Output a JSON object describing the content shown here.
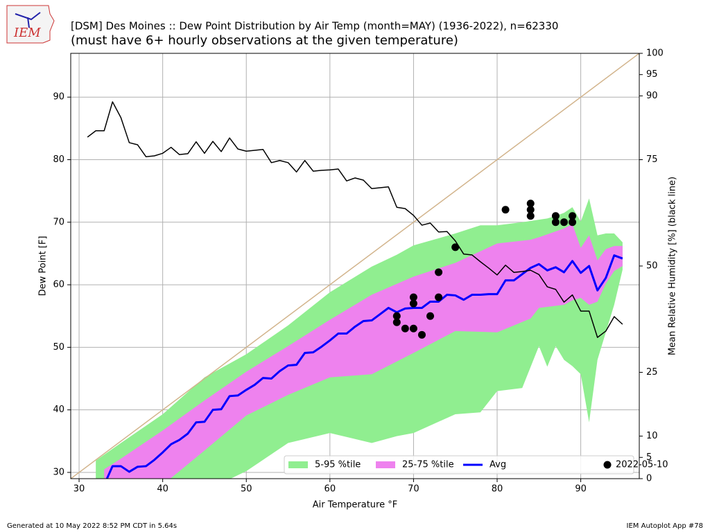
{
  "logo_text": "IEM",
  "footer_left": "Generated at 10 May 2022 8:52 PM CDT in 5.64s",
  "footer_right": "IEM Autoplot App #78",
  "chart_data": {
    "type": "line",
    "title": "[DSM] Des Moines :: Dew Point Distribution by Air Temp (month=MAY) (1936-2022), n=62330",
    "subtitle": "(must have 6+ hourly observations at the given temperature)",
    "xlabel": "Air Temperature °F",
    "ylabel": "Dew Point [F]",
    "y2label": "Mean Relative Humidity [%] (black line)",
    "xlim": [
      29,
      97
    ],
    "xticks": [
      30,
      40,
      50,
      60,
      70,
      80,
      90
    ],
    "ylim": [
      29,
      97
    ],
    "yticks": [
      30,
      40,
      50,
      60,
      70,
      80,
      90
    ],
    "y2lim": [
      0,
      100
    ],
    "y2ticks": [
      0,
      5,
      10,
      25,
      50,
      75,
      90,
      95,
      100
    ],
    "grid": true,
    "legend": "lower right",
    "series": [
      {
        "name": "5-95 %tile",
        "type": "band",
        "color": "#90ee90",
        "x": [
          32,
          35,
          40,
          45,
          50,
          55,
          60,
          65,
          68,
          70,
          75,
          78,
          80,
          83,
          85,
          86,
          87,
          88,
          89,
          90,
          91,
          92,
          93,
          94,
          95
        ],
        "upper": [
          31.9,
          34.7,
          39.3,
          45.2,
          48.9,
          53.5,
          58.8,
          62.9,
          64.8,
          66.3,
          68.2,
          69.5,
          69.5,
          70,
          70.4,
          70.6,
          71,
          71.5,
          72.4,
          70.1,
          73.8,
          67.9,
          68.2,
          68.2,
          66.8
        ],
        "lower": [
          26,
          26,
          26,
          27,
          30.2,
          34.7,
          36.3,
          34.7,
          35.8,
          36.3,
          39.3,
          39.6,
          43,
          43.5,
          50.2,
          46.9,
          50.2,
          48,
          47,
          45.7,
          38,
          48,
          52.4,
          56.8,
          62.4
        ]
      },
      {
        "name": "25-75 %tile",
        "type": "band",
        "color": "#ee82ee",
        "x": [
          33,
          35,
          40,
          45,
          50,
          55,
          60,
          65,
          70,
          75,
          80,
          84,
          85,
          88,
          89,
          90,
          91,
          92,
          93,
          94,
          95
        ],
        "upper": [
          30.5,
          32.2,
          36.7,
          41.5,
          46.1,
          50.2,
          54.4,
          58.4,
          61.3,
          63.5,
          66.6,
          67.2,
          67.6,
          69,
          69.7,
          65.9,
          67.9,
          63.9,
          65.7,
          66.2,
          66.2
        ],
        "lower": [
          26,
          27,
          28,
          33.5,
          39.1,
          42.4,
          45.2,
          45.7,
          49.1,
          52.6,
          52.4,
          54.6,
          56.3,
          56.8,
          57.5,
          57.9,
          56.8,
          57.3,
          60.2,
          62.2,
          63
        ]
      },
      {
        "name": "Avg",
        "type": "line",
        "color": "#0000ff",
        "width": 3,
        "x": [
          33,
          34,
          35,
          36,
          37,
          38,
          39,
          40,
          41,
          42,
          43,
          44,
          45,
          46,
          47,
          48,
          49,
          50,
          51,
          52,
          53,
          54,
          55,
          56,
          57,
          58,
          59,
          60,
          61,
          62,
          63,
          64,
          65,
          66,
          67,
          68,
          69,
          70,
          71,
          72,
          73,
          74,
          75,
          76,
          77,
          78,
          79,
          80,
          81,
          82,
          83,
          84,
          85,
          86,
          87,
          88,
          89,
          90,
          91,
          92,
          93,
          94,
          95
        ],
        "values": [
          28,
          31,
          31,
          30.1,
          30.9,
          31,
          32,
          33.2,
          34.5,
          35.2,
          36.2,
          38,
          38.1,
          40,
          40.1,
          42.2,
          42.3,
          43.2,
          44,
          45.1,
          45,
          46.2,
          47.1,
          47.2,
          49.1,
          49.2,
          50.1,
          51.1,
          52.2,
          52.2,
          53.3,
          54.2,
          54.3,
          55.3,
          56.3,
          55.6,
          56.2,
          56.3,
          56.3,
          57.3,
          57.3,
          58.4,
          58.3,
          57.6,
          58.4,
          58.4,
          58.5,
          58.5,
          60.7,
          60.7,
          61.7,
          62.7,
          63.3,
          62.3,
          62.8,
          62,
          63.8,
          61.9,
          63,
          59.1,
          61.1,
          64.7,
          64.2
        ]
      },
      {
        "type": "line",
        "color": "#d2b48c",
        "width": 1.5,
        "x": [
          29,
          97
        ],
        "values": [
          29,
          97
        ]
      },
      {
        "type": "line",
        "axis": "y2",
        "color": "#000000",
        "width": 1.5,
        "x": [
          31,
          32,
          33,
          34,
          35,
          36,
          37,
          38,
          39,
          40,
          41,
          42,
          43,
          44,
          45,
          46,
          47,
          48,
          49,
          50,
          51,
          52,
          53,
          54,
          55,
          56,
          57,
          58,
          59,
          60,
          61,
          62,
          63,
          64,
          65,
          66,
          67,
          68,
          69,
          70,
          71,
          72,
          73,
          74,
          75,
          76,
          77,
          78,
          79,
          80,
          81,
          82,
          83,
          84,
          85,
          86,
          87,
          88,
          89,
          90,
          91,
          92,
          93,
          94,
          95
        ],
        "values": [
          80.3,
          81.8,
          81.8,
          88.6,
          84.9,
          79,
          78.5,
          75.7,
          75.9,
          76.5,
          77.9,
          76.2,
          76.4,
          79.2,
          76.5,
          79.3,
          76.9,
          80.1,
          77.5,
          77,
          77.2,
          77.4,
          74.3,
          74.8,
          74.3,
          72.1,
          74.8,
          72.3,
          72.5,
          72.6,
          72.8,
          70,
          70.7,
          70.2,
          68.2,
          68.4,
          68.6,
          63.8,
          63.5,
          61.9,
          59.6,
          60.1,
          58,
          58.1,
          55.9,
          52.8,
          52.6,
          51,
          49.5,
          47.9,
          50.2,
          48.5,
          48.7,
          49,
          48,
          45.1,
          44.5,
          41.5,
          43.2,
          39.4,
          39.4,
          33.2,
          34.7,
          38.1,
          36.3
        ]
      },
      {
        "name": "2022-05-10",
        "type": "scatter",
        "color": "#000000",
        "x": [
          68,
          68,
          69,
          70,
          70,
          70,
          71,
          72,
          73,
          73,
          75,
          81,
          84,
          84,
          84,
          87,
          87,
          88,
          89,
          89
        ],
        "values": [
          55,
          54,
          53,
          58,
          57,
          53,
          52,
          55,
          58,
          62,
          66,
          72,
          73,
          72,
          71,
          71,
          70,
          70,
          71,
          70
        ]
      }
    ]
  }
}
